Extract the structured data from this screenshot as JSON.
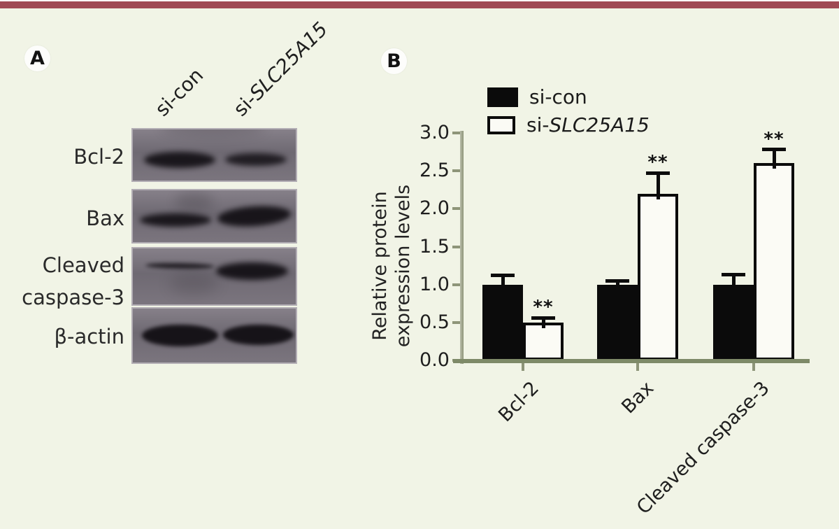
{
  "page": {
    "background_color": "#f1f4e6",
    "top_bar_color": "#a04a54"
  },
  "figure": {
    "panel_a": {
      "badge": "A",
      "column_headers": [
        {
          "plain": "si-con",
          "italic": ""
        },
        {
          "plain": "si-",
          "italic": "SLC25A15"
        }
      ],
      "rows": [
        {
          "lines": [
            "Bcl-2"
          ]
        },
        {
          "lines": [
            "Bax"
          ]
        },
        {
          "lines": [
            "Cleaved",
            "caspase-3"
          ]
        },
        {
          "lines": [
            "β-actin"
          ]
        }
      ]
    },
    "panel_b": {
      "badge": "B"
    }
  },
  "chart_data": {
    "type": "bar",
    "title": "",
    "ylabel_lines": [
      "Relative protein",
      "expression levels"
    ],
    "ylabel": "Relative protein expression levels",
    "xlabel": "",
    "ylim": [
      0.0,
      3.0
    ],
    "yticks": [
      0.0,
      0.5,
      1.0,
      1.5,
      2.0,
      2.5,
      3.0
    ],
    "categories": [
      "Bcl-2",
      "Bax",
      "Cleaved caspase-3"
    ],
    "series": [
      {
        "name": "si-con",
        "label_plain": "si-con",
        "label_italic": "",
        "fill": "#0b0b0b",
        "values": [
          1.0,
          1.0,
          1.0
        ],
        "errors": [
          0.12,
          0.05,
          0.13
        ],
        "significance": [
          "",
          "",
          ""
        ]
      },
      {
        "name": "si-SLC25A15",
        "label_plain": "si-",
        "label_italic": "SLC25A15",
        "fill": "#fbfbf5",
        "values": [
          0.5,
          2.2,
          2.6
        ],
        "errors": [
          0.06,
          0.27,
          0.18
        ],
        "significance": [
          "**",
          "**",
          "**"
        ]
      }
    ],
    "legend_position": "top-left",
    "grid": false,
    "axis_color": "#8e9579",
    "baseline_color": "#7e8a68",
    "bar_border_color": "#0b0b0b",
    "significance_marker": "**"
  }
}
